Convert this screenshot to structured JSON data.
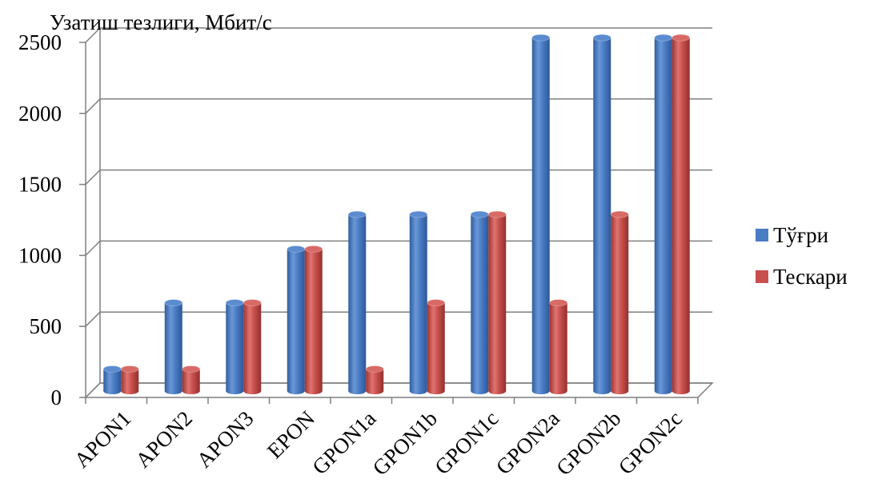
{
  "chart_data": {
    "type": "bar",
    "title": "",
    "xlabel": "",
    "ylabel": "Узатиш тезлиги, Мбит/с",
    "ylim": [
      0,
      2500
    ],
    "yticks": [
      "0",
      "500",
      "1000",
      "1500",
      "2000",
      "2500"
    ],
    "grid": true,
    "legend_position": "right",
    "categories": [
      "APON1",
      "APON2",
      "APON3",
      "EPON",
      "GPON1a",
      "GPON1b",
      "GPON1c",
      "GPON2a",
      "GPON2b",
      "GPON2c"
    ],
    "series": [
      {
        "name": "Тўғри",
        "color": "#4a7cc4",
        "values": [
          155,
          622,
          622,
          1000,
          1244,
          1244,
          1244,
          2488,
          2488,
          2488
        ]
      },
      {
        "name": "Тескари",
        "color": "#c8504c",
        "values": [
          155,
          155,
          622,
          1000,
          155,
          622,
          1244,
          622,
          1244,
          2488
        ]
      }
    ]
  }
}
